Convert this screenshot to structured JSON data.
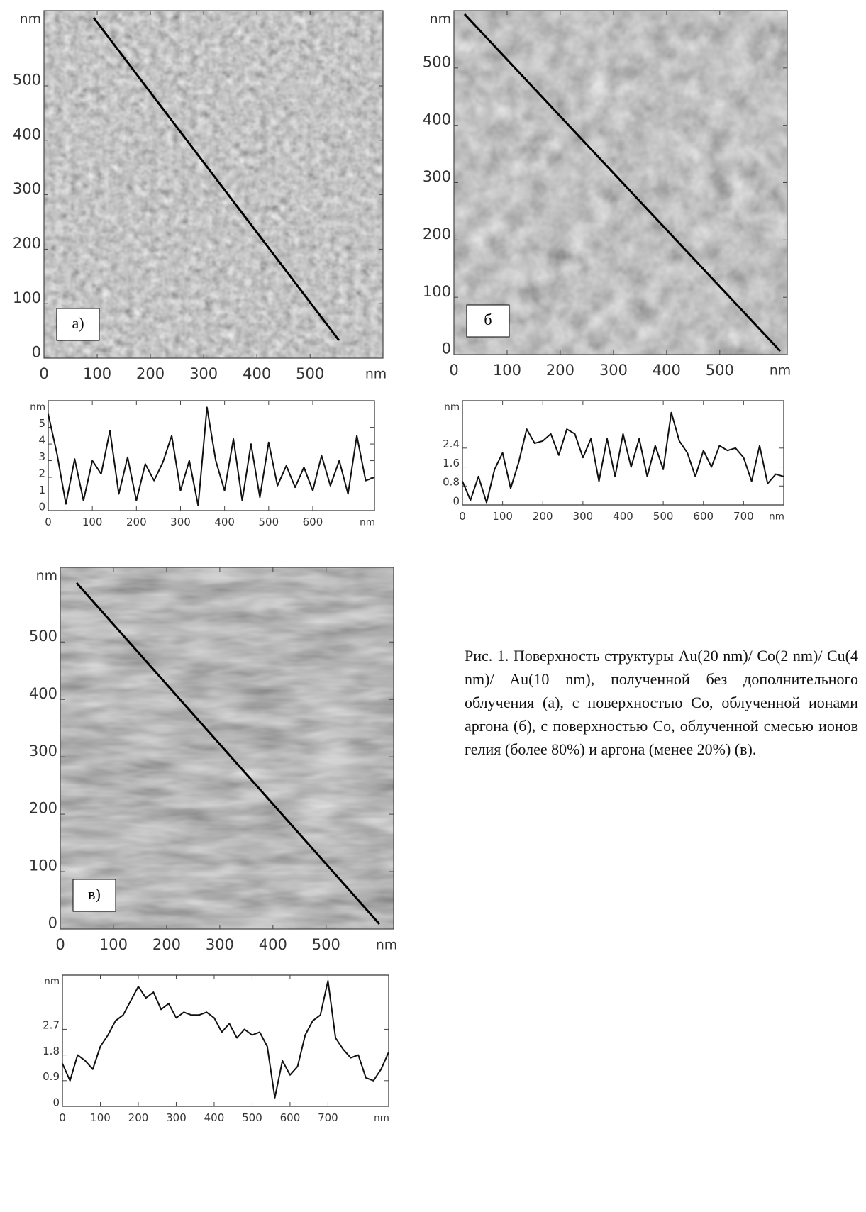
{
  "chart_data": [
    {
      "type": "image",
      "label": "а)",
      "xlim": [
        0,
        637
      ],
      "ylim": [
        0,
        638
      ],
      "xticks": [
        0,
        100,
        200,
        300,
        400,
        500
      ],
      "yticks": [
        0,
        100,
        200,
        300,
        400,
        500
      ],
      "xlabel": "nm",
      "ylabel": "nm"
    },
    {
      "type": "line",
      "color": "#111111",
      "xlim": [
        0,
        740
      ],
      "ylim": [
        0,
        6.6
      ],
      "xticks": [
        0,
        100,
        200,
        300,
        400,
        500,
        600
      ],
      "yticks": [
        0,
        1,
        2,
        3,
        4,
        5
      ],
      "xlabel": "nm",
      "ylabel": "nm",
      "x": [
        0,
        20,
        40,
        60,
        80,
        100,
        120,
        140,
        160,
        180,
        200,
        220,
        240,
        260,
        280,
        300,
        320,
        340,
        360,
        380,
        400,
        420,
        440,
        460,
        480,
        500,
        520,
        540,
        560,
        580,
        600,
        620,
        640,
        660,
        680,
        700,
        720,
        740
      ],
      "values": [
        5.8,
        3.4,
        0.4,
        3.1,
        0.6,
        3.0,
        2.2,
        4.8,
        1.0,
        3.2,
        0.6,
        2.8,
        1.8,
        2.9,
        4.5,
        1.2,
        3.0,
        0.3,
        6.2,
        3.0,
        1.2,
        4.3,
        0.6,
        4.0,
        0.8,
        4.1,
        1.5,
        2.7,
        1.4,
        2.6,
        1.2,
        3.3,
        1.5,
        3.0,
        1.0,
        4.5,
        1.8,
        2.0
      ]
    },
    {
      "type": "image",
      "label": "б",
      "xlim": [
        0,
        627
      ],
      "ylim": [
        0,
        600
      ],
      "xticks": [
        0,
        100,
        200,
        300,
        400,
        500
      ],
      "yticks": [
        0,
        100,
        200,
        300,
        400,
        500
      ],
      "xlabel": "nm",
      "ylabel": "nm"
    },
    {
      "type": "line",
      "color": "#111111",
      "xlim": [
        0,
        800
      ],
      "ylim": [
        0,
        4.4
      ],
      "xticks": [
        0,
        100,
        200,
        300,
        400,
        500,
        600,
        700
      ],
      "yticks": [
        0,
        0.8,
        1.6,
        2.4
      ],
      "xlabel": "nm",
      "ylabel": "nm",
      "x": [
        0,
        20,
        40,
        60,
        80,
        100,
        120,
        140,
        160,
        180,
        200,
        220,
        240,
        260,
        280,
        300,
        320,
        340,
        360,
        380,
        400,
        420,
        440,
        460,
        480,
        500,
        520,
        540,
        560,
        580,
        600,
        620,
        640,
        660,
        680,
        700,
        720,
        740,
        760,
        780,
        800
      ],
      "values": [
        1.0,
        0.2,
        1.2,
        0.1,
        1.5,
        2.2,
        0.7,
        1.8,
        3.2,
        2.6,
        2.7,
        3.0,
        2.1,
        3.2,
        3.0,
        2.0,
        2.8,
        1.0,
        2.8,
        1.2,
        3.0,
        1.6,
        2.8,
        1.2,
        2.5,
        1.5,
        3.9,
        2.7,
        2.2,
        1.2,
        2.3,
        1.6,
        2.5,
        2.3,
        2.4,
        2.0,
        1.0,
        2.5,
        0.9,
        1.3,
        1.2
      ]
    },
    {
      "type": "image",
      "label": "в)",
      "xlim": [
        0,
        627
      ],
      "ylim": [
        0,
        630
      ],
      "xticks": [
        0,
        100,
        200,
        300,
        400,
        500
      ],
      "yticks": [
        0,
        100,
        200,
        300,
        400,
        500
      ],
      "xlabel": "nm",
      "ylabel": "nm"
    },
    {
      "type": "line",
      "color": "#111111",
      "xlim": [
        0,
        860
      ],
      "ylim": [
        0,
        4.6
      ],
      "xticks": [
        0,
        100,
        200,
        300,
        400,
        500,
        600,
        700
      ],
      "yticks": [
        0,
        0.9,
        1.8,
        2.7
      ],
      "xlabel": "nm",
      "ylabel": "nm",
      "x": [
        0,
        20,
        40,
        60,
        80,
        100,
        120,
        140,
        160,
        180,
        200,
        220,
        240,
        260,
        280,
        300,
        320,
        340,
        360,
        380,
        400,
        420,
        440,
        460,
        480,
        500,
        520,
        540,
        560,
        580,
        600,
        620,
        640,
        660,
        680,
        700,
        720,
        740,
        760,
        780,
        800,
        820,
        840,
        860
      ],
      "values": [
        1.5,
        0.9,
        1.8,
        1.6,
        1.3,
        2.1,
        2.5,
        3.0,
        3.2,
        3.7,
        4.2,
        3.8,
        4.0,
        3.4,
        3.6,
        3.1,
        3.3,
        3.2,
        3.2,
        3.3,
        3.1,
        2.6,
        2.9,
        2.4,
        2.7,
        2.5,
        2.6,
        2.1,
        0.3,
        1.6,
        1.1,
        1.4,
        2.5,
        3.0,
        3.2,
        4.4,
        2.4,
        2.0,
        1.7,
        1.8,
        1.0,
        0.9,
        1.3,
        1.9
      ]
    }
  ],
  "caption": "Рис. 1. Поверхность структуры Au(20 nm)/ Co(2 nm)/ Cu(4 nm)/ Au(10 nm), полученной без дополнительного облучения (а), с поверхностью Co, облученной ионами аргона (б), с поверхностью Co, облученной смесью ионов гелия (более 80%) и аргона (менее 20%) (в)."
}
